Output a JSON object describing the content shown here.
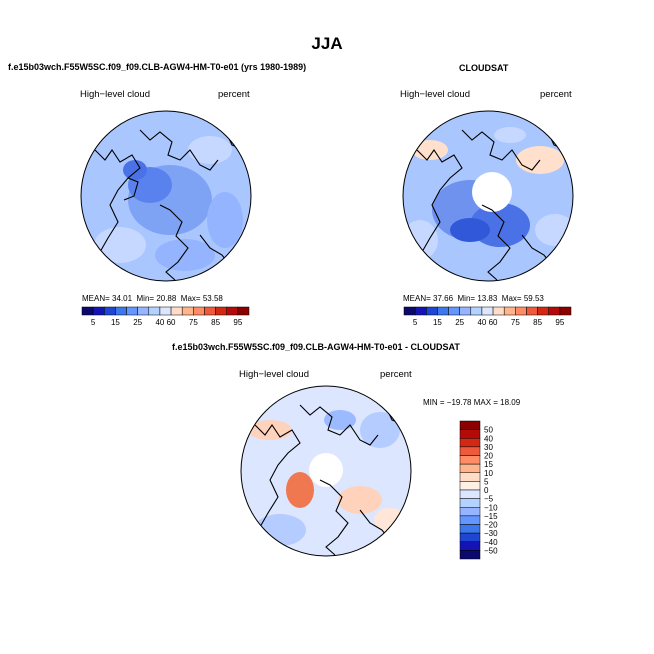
{
  "title": "JJA",
  "panels": {
    "model": {
      "header": "f.e15b03wch.F55W5SC.f09_f09.CLB-AGW4-HM-T0-e01 (yrs 1980-1989)",
      "left_label": "High−level cloud",
      "right_label": "percent",
      "stats": {
        "mean_label": "MEAN=",
        "mean": "34.01",
        "min_label": "Min=",
        "min": "20.88",
        "max_label": "Max=",
        "max": "53.58"
      }
    },
    "obs": {
      "header": "CLOUDSAT",
      "left_label": "High−level cloud",
      "right_label": "percent",
      "stats": {
        "mean_label": "MEAN=",
        "mean": "37.66",
        "min_label": "Min=",
        "min": "13.83",
        "max_label": "Max=",
        "max": "59.53"
      }
    },
    "diff": {
      "header": "f.e15b03wch.F55W5SC.f09_f09.CLB-AGW4-HM-T0-e01 - CLOUDSAT",
      "left_label": "High−level cloud",
      "right_label": "percent",
      "stats": "MIN = −19.78 MAX =  18.09"
    }
  },
  "colorbar_horizontal": {
    "labels": [
      "5",
      "15",
      "25",
      "40",
      "60",
      "75",
      "85",
      "95"
    ],
    "colors": [
      "#0a0a6e",
      "#1414b4",
      "#1e46d2",
      "#3c78eb",
      "#6496ff",
      "#96b4ff",
      "#b4d2ff",
      "#dce6ff",
      "#ffdcc8",
      "#ffb48c",
      "#ff8c64",
      "#f05a3c",
      "#d22814",
      "#b40a0a",
      "#8c0000"
    ]
  },
  "colorbar_vertical": {
    "labels": [
      "50",
      "40",
      "30",
      "20",
      "15",
      "10",
      "5",
      "0",
      "−5",
      "−10",
      "−15",
      "−20",
      "−30",
      "−40",
      "−50"
    ],
    "colors": [
      "#8c0000",
      "#b40a0a",
      "#d22814",
      "#f05a3c",
      "#ff8c64",
      "#ffb48c",
      "#ffdcc8",
      "#fff0e6",
      "#dce6ff",
      "#b4d2ff",
      "#96b4ff",
      "#6496ff",
      "#3c78eb",
      "#1e46d2",
      "#1414b4",
      "#0a0a6e"
    ]
  }
}
